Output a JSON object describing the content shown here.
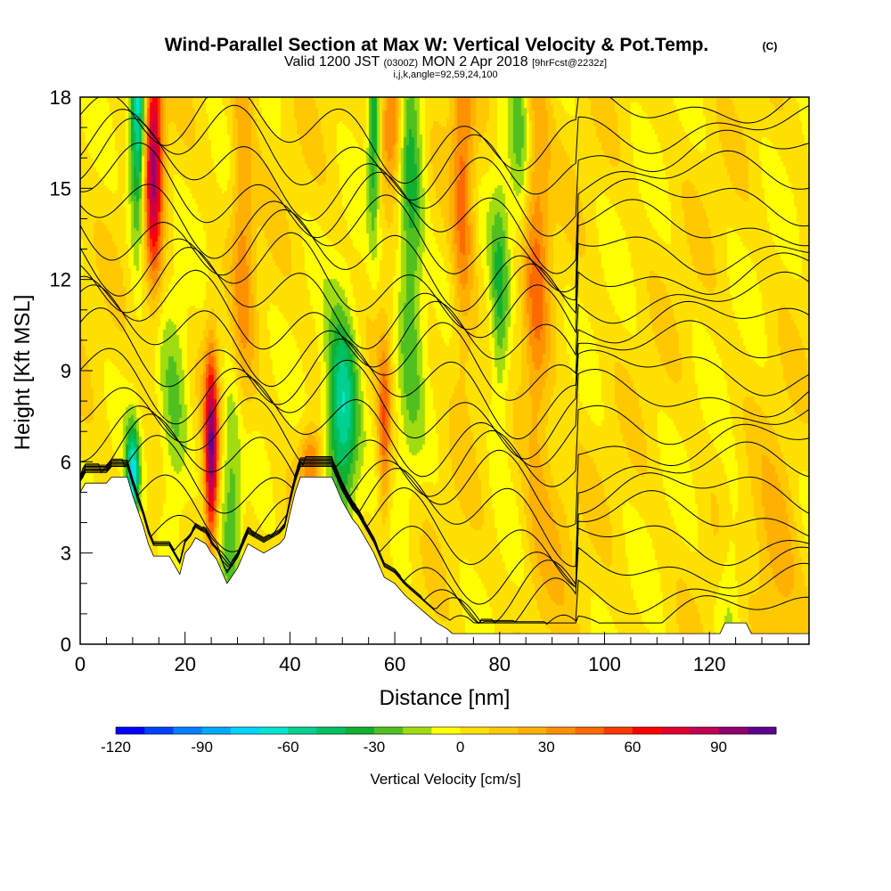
{
  "header": {
    "title": "Wind-Parallel Section at Max W: Vertical Velocity & Pot.Temp.",
    "title_mark": "(C)",
    "valid_prefix": "Valid 1200 JST",
    "valid_utc": "(0300Z)",
    "valid_date": "MON 2 Apr 2018",
    "forecast": "[9hrFcst@2232z]",
    "params": "i,j,k,angle=92,59,24,100"
  },
  "chart_data": {
    "type": "heatmap",
    "xlabel": "Distance [nm]",
    "ylabel": "Height [Kft MSL]",
    "xlim": [
      0,
      139
    ],
    "ylim": [
      0,
      18
    ],
    "x_ticks": [
      0,
      20,
      40,
      60,
      80,
      100,
      120
    ],
    "y_ticks": [
      0,
      3,
      6,
      9,
      12,
      15,
      18
    ],
    "colorbar": {
      "label": "Vertical Velocity [cm/s]",
      "range": [
        -120,
        110
      ],
      "step": 10,
      "tick_values": [
        -120,
        -90,
        -60,
        -30,
        0,
        30,
        60,
        90
      ],
      "colors": [
        "#0000ff",
        "#0040ff",
        "#0080ff",
        "#00aaff",
        "#00d4ff",
        "#00e6d0",
        "#00d090",
        "#00c060",
        "#10b030",
        "#50c020",
        "#a0dc10",
        "#ffff00",
        "#ffe000",
        "#ffc800",
        "#ffb000",
        "#ff9000",
        "#ff6a00",
        "#ff3a00",
        "#ff0000",
        "#e00030",
        "#c00050",
        "#900070",
        "#600090"
      ]
    },
    "terrain": [
      [
        0,
        5
      ],
      [
        1,
        5.3
      ],
      [
        5,
        5.3
      ],
      [
        6,
        5.5
      ],
      [
        9,
        5.5
      ],
      [
        10,
        4.9
      ],
      [
        11,
        4.4
      ],
      [
        12,
        3.9
      ],
      [
        13,
        3.3
      ],
      [
        14,
        2.9
      ],
      [
        17,
        2.9
      ],
      [
        18,
        2.6
      ],
      [
        19,
        2.3
      ],
      [
        20,
        3.0
      ],
      [
        21,
        3.2
      ],
      [
        22,
        3.5
      ],
      [
        24,
        3.3
      ],
      [
        25,
        3.0
      ],
      [
        26,
        2.8
      ],
      [
        27,
        2.4
      ],
      [
        28,
        2.0
      ],
      [
        30,
        2.5
      ],
      [
        31,
        2.9
      ],
      [
        32,
        3.3
      ],
      [
        35,
        3.0
      ],
      [
        38,
        3.3
      ],
      [
        39,
        3.5
      ],
      [
        40,
        4.3
      ],
      [
        41,
        5.0
      ],
      [
        42,
        5.5
      ],
      [
        48,
        5.5
      ],
      [
        49,
        5.1
      ],
      [
        50,
        4.7
      ],
      [
        51,
        4.4
      ],
      [
        52,
        4.1
      ],
      [
        53,
        3.9
      ],
      [
        54,
        3.6
      ],
      [
        55,
        3.3
      ],
      [
        56,
        3.0
      ],
      [
        57,
        2.6
      ],
      [
        58,
        2.2
      ],
      [
        60,
        2.0
      ],
      [
        62,
        1.6
      ],
      [
        64,
        1.3
      ],
      [
        66,
        1.0
      ],
      [
        68,
        0.7
      ],
      [
        70,
        0.5
      ],
      [
        71,
        0.35
      ],
      [
        122,
        0.35
      ],
      [
        123,
        0.7
      ],
      [
        127,
        0.7
      ],
      [
        128,
        0.35
      ],
      [
        139,
        0.35
      ]
    ],
    "updrafts": [
      {
        "x": 14,
        "z": 16,
        "sx": 1.2,
        "sz": 3,
        "w": 85
      },
      {
        "x": 25,
        "z": 6.3,
        "sx": 0.9,
        "sz": 2.3,
        "w": 95
      },
      {
        "x": 58,
        "z": 7.0,
        "sx": 0.9,
        "sz": 2.1,
        "w": 45
      },
      {
        "x": 59.5,
        "z": 17.3,
        "sx": 1.5,
        "sz": 1.5,
        "w": 50
      },
      {
        "x": 73,
        "z": 15,
        "sx": 1.5,
        "sz": 4,
        "w": 40
      },
      {
        "x": 87,
        "z": 13,
        "sx": 1.8,
        "sz": 6,
        "w": 35
      },
      {
        "x": 44,
        "z": 6,
        "sx": 1.5,
        "sz": 0.8,
        "w": 40
      },
      {
        "x": 31,
        "z": 14,
        "sx": 1.5,
        "sz": 5,
        "w": 30
      },
      {
        "x": 133,
        "z": 2.4,
        "sx": 3,
        "sz": 2.5,
        "w": 25
      },
      {
        "x": 90,
        "z": 4,
        "sx": 3,
        "sz": 2,
        "w": 15
      }
    ],
    "downdrafts": [
      {
        "x": 11,
        "z": 17,
        "sx": 1.1,
        "sz": 2.5,
        "w": -70
      },
      {
        "x": 10,
        "z": 5.5,
        "sx": 0.9,
        "sz": 1.2,
        "w": -70
      },
      {
        "x": 50,
        "z": 7.5,
        "sx": 2.2,
        "sz": 2.3,
        "w": -70
      },
      {
        "x": 56,
        "z": 17,
        "sx": 0.8,
        "sz": 2.5,
        "w": -45
      },
      {
        "x": 63,
        "z": 14,
        "sx": 1.8,
        "sz": 5,
        "w": -40
      },
      {
        "x": 80,
        "z": 11,
        "sx": 1.3,
        "sz": 3,
        "w": -35
      },
      {
        "x": 84,
        "z": 17,
        "sx": 1.5,
        "sz": 3,
        "w": -25
      },
      {
        "x": 18,
        "z": 7,
        "sx": 2,
        "sz": 3,
        "w": -25
      },
      {
        "x": 29,
        "z": 5,
        "sx": 1.5,
        "sz": 3,
        "w": -30
      },
      {
        "x": 124,
        "z": 2,
        "sx": 1.5,
        "sz": 2,
        "w": -18
      }
    ]
  }
}
